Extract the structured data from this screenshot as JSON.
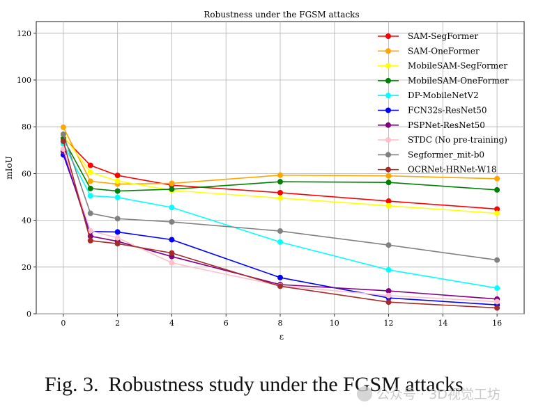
{
  "chart_data": {
    "type": "line",
    "title": "Robustness under the FGSM attacks",
    "xlabel": "ε",
    "ylabel": "mIoU",
    "xlim": [
      -1,
      17
    ],
    "ylim": [
      0,
      125
    ],
    "xticks": [
      0,
      2,
      4,
      6,
      8,
      10,
      12,
      14,
      16
    ],
    "yticks": [
      0,
      20,
      40,
      60,
      80,
      100,
      120
    ],
    "grid": true,
    "legend_position": "top-right",
    "x": [
      0,
      1,
      2,
      4,
      8,
      12,
      16
    ],
    "series": [
      {
        "name": "SAM-SegFormer",
        "color": "#ff0000",
        "values": [
          75.5,
          63.5,
          59.2,
          55.0,
          51.8,
          48.2,
          44.8
        ]
      },
      {
        "name": "SAM-OneFormer",
        "color": "#ffa500",
        "values": [
          79.8,
          56.7,
          55.5,
          55.8,
          59.3,
          59.0,
          57.8
        ]
      },
      {
        "name": "MobileSAM-SegFormer",
        "color": "#ffff00",
        "values": [
          76.2,
          60.5,
          56.8,
          52.8,
          49.5,
          46.2,
          43.0
        ]
      },
      {
        "name": "MobileSAM-OneFormer",
        "color": "#008000",
        "values": [
          74.8,
          53.6,
          52.5,
          53.3,
          56.5,
          56.2,
          53.0
        ]
      },
      {
        "name": "DP-MobileNetV2",
        "color": "#00ffff",
        "values": [
          72.7,
          50.5,
          49.8,
          45.5,
          30.7,
          18.8,
          11.0
        ]
      },
      {
        "name": "FCN32s-ResNet50",
        "color": "#0000ff",
        "values": [
          68.0,
          35.2,
          35.0,
          31.7,
          15.5,
          6.8,
          3.8
        ]
      },
      {
        "name": "PSPNet-ResNet50",
        "color": "#800080",
        "values": [
          69.5,
          33.2,
          31.0,
          24.5,
          12.5,
          9.8,
          6.3
        ]
      },
      {
        "name": "STDC (No pre-training)",
        "color": "#ffc0cb",
        "values": [
          70.5,
          35.5,
          32.5,
          21.8,
          12.0,
          7.8,
          5.2
        ]
      },
      {
        "name": "Segformer_mit-b0",
        "color": "#808080",
        "values": [
          76.8,
          43.0,
          40.7,
          39.3,
          35.4,
          29.4,
          23.0
        ]
      },
      {
        "name": "OCRNet-HRNet-W18",
        "color": "#a52a2a",
        "values": [
          73.8,
          31.3,
          30.0,
          26.0,
          11.8,
          5.0,
          2.5
        ]
      }
    ]
  },
  "caption": {
    "label": "Fig. 3.",
    "text": "Robustness study under the FGSM attacks"
  },
  "watermark": {
    "text": "公众号 · 3D视觉工坊"
  }
}
